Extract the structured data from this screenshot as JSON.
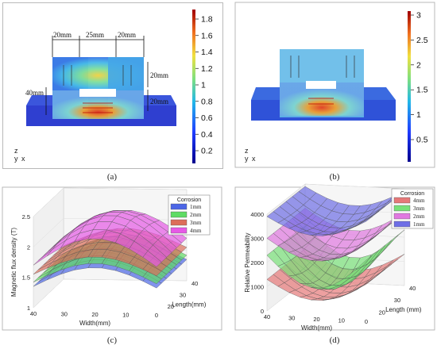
{
  "panels": {
    "a": {
      "caption": "(a)",
      "dims": {
        "top_left": "20mm",
        "top_mid": "25mm",
        "top_right": "20mm",
        "left": "40mm",
        "right_top": "20mm",
        "right_bottom": "20mm"
      },
      "axis_glyph": {
        "z": "z",
        "y": "y",
        "x": "x"
      },
      "colorbar": {
        "ticks": [
          "1.8",
          "1.6",
          "1.4",
          "1.2",
          "1",
          "0.8",
          "0.6",
          "0.4",
          "0.2"
        ]
      }
    },
    "b": {
      "caption": "(b)",
      "axis_glyph": {
        "z": "z",
        "y": "y",
        "x": "x"
      },
      "colorbar": {
        "ticks": [
          "3",
          "2.5",
          "2",
          "1.5",
          "1",
          "0.5"
        ]
      }
    },
    "c": {
      "caption": "(c)"
    },
    "d": {
      "caption": "(d)"
    }
  },
  "chart_data": [
    {
      "type": "surface",
      "panel": "c",
      "zlabel": "Magnetic flux density (T)",
      "xlabel": "Width(mm)",
      "ylabel": "Length(mm)",
      "zticks": [
        "1",
        "1.5",
        "2",
        "2.5"
      ],
      "xticks": [
        "40",
        "30",
        "20",
        "10",
        "0"
      ],
      "yticks": [
        "20",
        "30",
        "40"
      ],
      "zlim": [
        1,
        2.5
      ],
      "legend_title": "Corrosion",
      "legend_position": "top-right",
      "series": [
        {
          "name": "1mm",
          "color": "#4c66e6",
          "peak": 1.78,
          "low": 1.35
        },
        {
          "name": "2mm",
          "color": "#5fdc64",
          "peak": 1.85,
          "low": 1.42
        },
        {
          "name": "3mm",
          "color": "#dc6e5a",
          "peak": 1.95,
          "low": 1.55
        },
        {
          "name": "4mm",
          "color": "#e65ae6",
          "peak": 2.3,
          "low": 1.7
        }
      ]
    },
    {
      "type": "surface",
      "panel": "d",
      "zlabel": "Relative Permeability",
      "xlabel": "Width(mm)",
      "ylabel": "Length (mm)",
      "zticks": [
        "0",
        "1000",
        "2000",
        "3000",
        "4000"
      ],
      "xticks": [
        "40",
        "30",
        "20",
        "10",
        "0"
      ],
      "yticks": [
        "20",
        "30",
        "40"
      ],
      "zlim": [
        0,
        4000
      ],
      "legend_title": "Corrosion",
      "legend_position": "top-right",
      "series": [
        {
          "name": "4mm",
          "color": "#e67878",
          "edge": 1300,
          "mid": 200
        },
        {
          "name": "3mm",
          "color": "#78e078",
          "edge": 2300,
          "mid": 500
        },
        {
          "name": "2mm",
          "color": "#e078e0",
          "edge": 3000,
          "mid": 1800
        },
        {
          "name": "1mm",
          "color": "#6e6ee6",
          "edge": 3900,
          "mid": 2900
        }
      ]
    }
  ]
}
